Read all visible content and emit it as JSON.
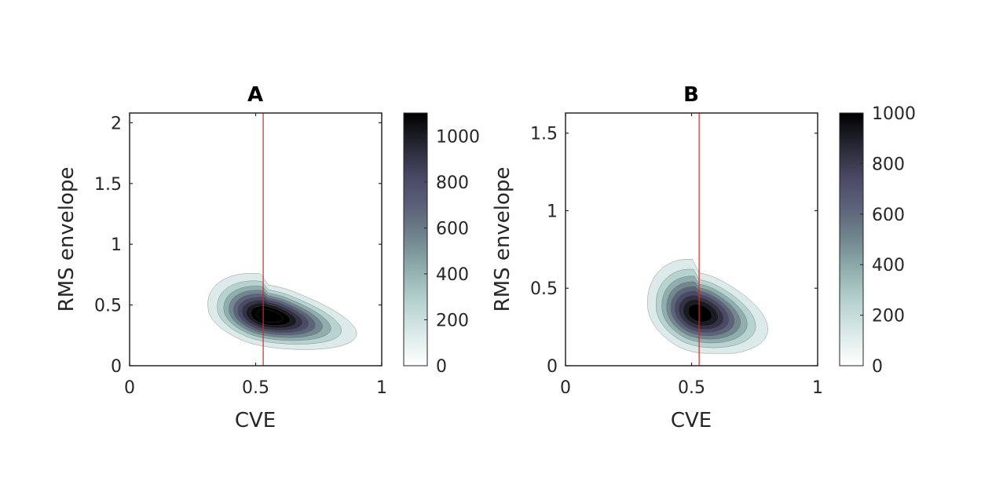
{
  "colors": {
    "refline": "#d62728",
    "axis": "#262626",
    "colormap": [
      "#ffffff",
      "#dcebe9",
      "#b7d3d0",
      "#91aeae",
      "#72878f",
      "#5c647a",
      "#4a4a66",
      "#333245",
      "#1a1a22",
      "#000000"
    ]
  },
  "chart_data": [
    {
      "type": "contour",
      "title": "A",
      "xlabel": "CVE",
      "ylabel": "RMS envelope",
      "xlim": [
        0,
        1
      ],
      "ylim": [
        0,
        2.08
      ],
      "xticks": [
        "0",
        "0.5",
        "1"
      ],
      "yticks": [
        "0",
        "0.5",
        "1",
        "1.5",
        "2"
      ],
      "reference_line_x": 0.53,
      "peak": {
        "x": 0.55,
        "y": 0.41,
        "value": 1100
      },
      "contour_levels": [
        100,
        200,
        300,
        400,
        500,
        600,
        700,
        800,
        900,
        1000
      ],
      "colorbar": {
        "min": 0,
        "max": 1100,
        "ticks": [
          "0",
          "200",
          "400",
          "600",
          "800",
          "1000"
        ]
      }
    },
    {
      "type": "contour",
      "title": "B",
      "xlabel": "CVE",
      "ylabel": "RMS envelope",
      "xlim": [
        0,
        1
      ],
      "ylim": [
        0,
        1.63
      ],
      "xticks": [
        "0",
        "0.5",
        "1"
      ],
      "yticks": [
        "0",
        "0.5",
        "1",
        "1.5"
      ],
      "reference_line_x": 0.53,
      "peak": {
        "x": 0.53,
        "y": 0.34,
        "value": 1000
      },
      "contour_levels": [
        100,
        200,
        300,
        400,
        500,
        600,
        700,
        800,
        900
      ],
      "colorbar": {
        "min": 0,
        "max": 1000,
        "ticks": [
          "0",
          "200",
          "400",
          "600",
          "800",
          "1000"
        ]
      }
    }
  ]
}
